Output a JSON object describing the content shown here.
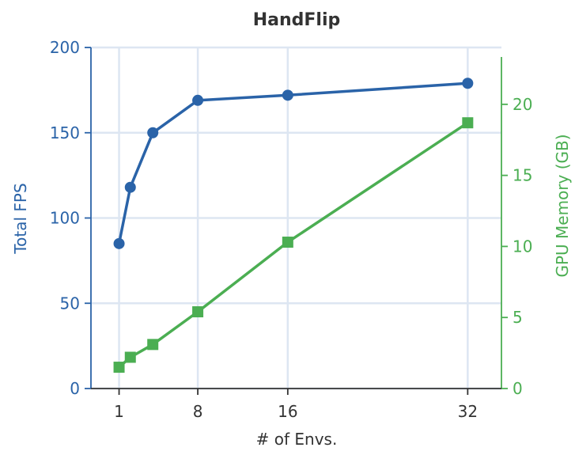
{
  "chart_data": {
    "type": "line",
    "title": "HandFlip",
    "xlabel": "# of Envs.",
    "x": [
      1,
      2,
      4,
      8,
      16,
      32
    ],
    "xticks": [
      1,
      8,
      16,
      32
    ],
    "xlim": [
      -1.5,
      35
    ],
    "grid": true,
    "series": [
      {
        "name": "",
        "axis": "left",
        "marker": "circle",
        "color": "#2a63a8",
        "values": [
          85,
          118,
          150,
          169,
          172,
          179
        ]
      },
      {
        "name": "",
        "axis": "right",
        "marker": "square",
        "color": "#4bae52",
        "values": [
          1.5,
          2.2,
          3.1,
          5.4,
          10.3,
          18.7
        ]
      }
    ],
    "left_axis": {
      "label": "Total FPS",
      "color": "#2a63a8",
      "ylim": [
        0,
        200
      ],
      "ticks": [
        0,
        50,
        100,
        150,
        200
      ]
    },
    "right_axis": {
      "label": "GPU Memory (GB)",
      "color": "#4bae52",
      "ylim": [
        0,
        24
      ],
      "ticks": [
        0,
        5,
        10,
        15,
        20
      ]
    },
    "grid_color": "#dde6f2",
    "axis_text_color": "#333333"
  }
}
